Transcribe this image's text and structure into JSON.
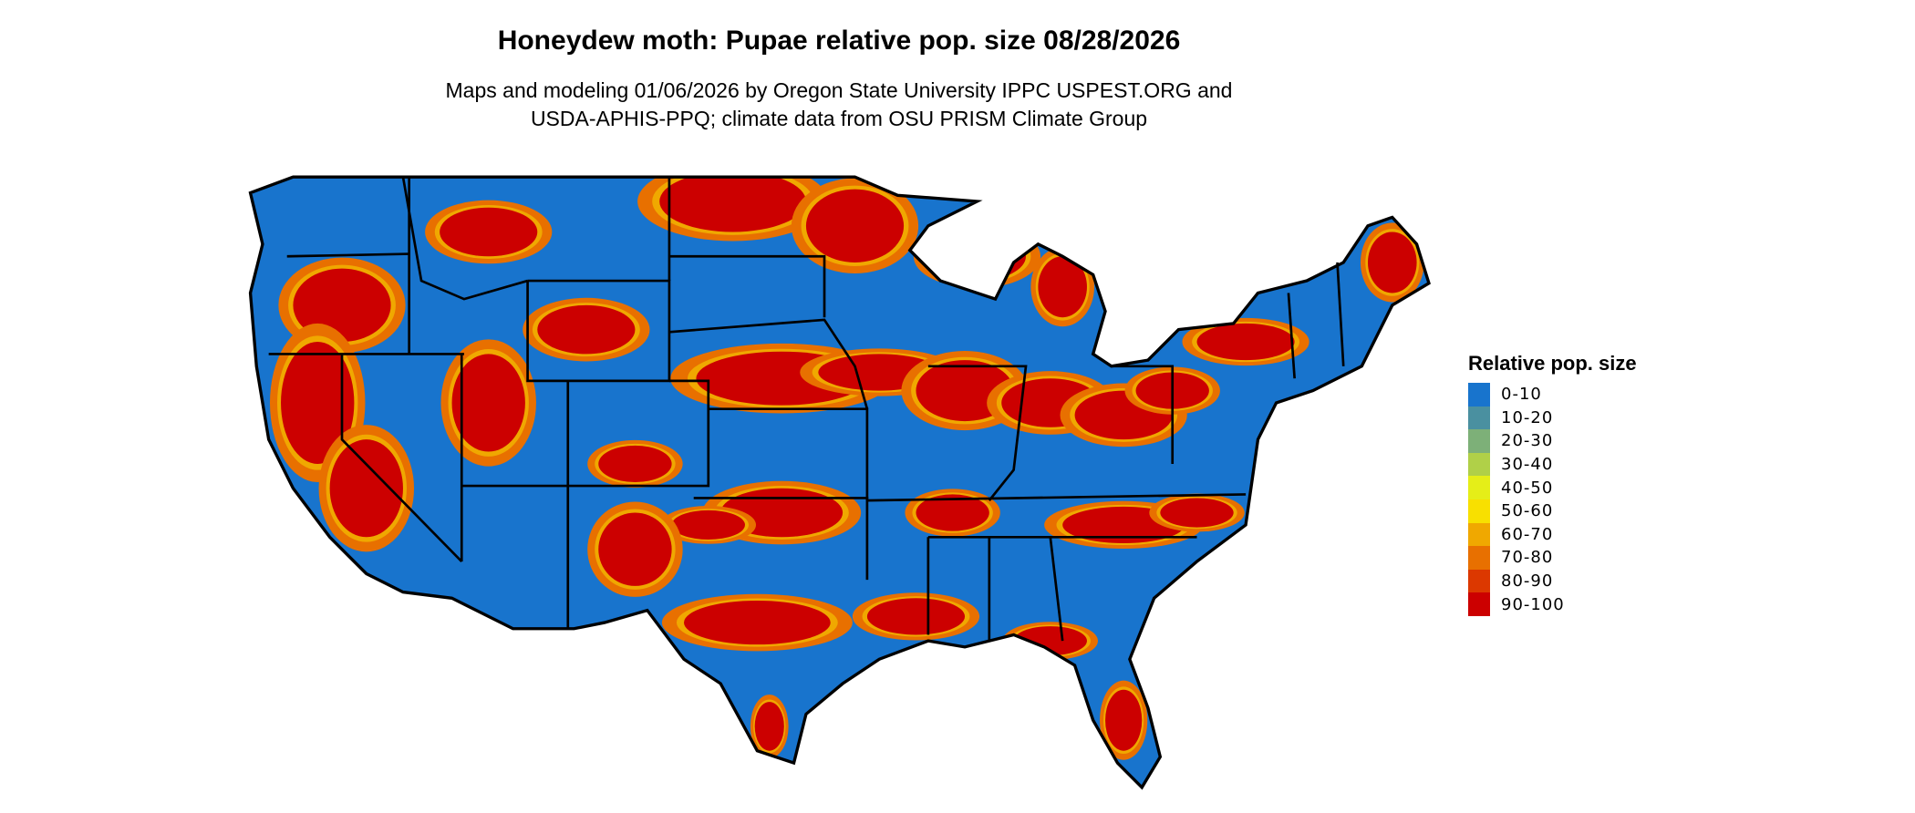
{
  "title": "Honeydew moth: Pupae relative pop. size 08/28/2026",
  "subtitle_line1": "Maps and modeling 01/06/2026 by Oregon State University IPPC USPEST.ORG and",
  "subtitle_line2": "USDA-APHIS-PPQ; climate data from OSU PRISM Climate Group",
  "legend": {
    "title": "Relative pop. size",
    "items": [
      {
        "label": "0-10",
        "color": "#1874CD"
      },
      {
        "label": "10-20",
        "color": "#4A90A0"
      },
      {
        "label": "20-30",
        "color": "#7DB078"
      },
      {
        "label": "30-40",
        "color": "#B0D048"
      },
      {
        "label": "40-50",
        "color": "#E5EE18"
      },
      {
        "label": "50-60",
        "color": "#F8E000"
      },
      {
        "label": "60-70",
        "color": "#F0A800"
      },
      {
        "label": "70-80",
        "color": "#E87000"
      },
      {
        "label": "80-90",
        "color": "#DC3800"
      },
      {
        "label": "90-100",
        "color": "#CC0000"
      }
    ]
  }
}
